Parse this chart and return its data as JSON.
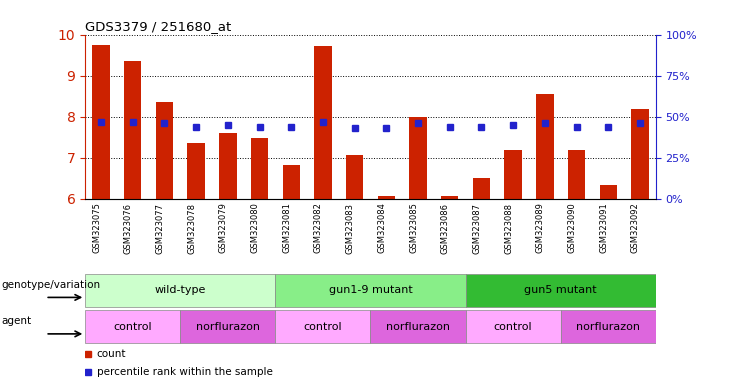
{
  "title": "GDS3379 / 251680_at",
  "samples": [
    "GSM323075",
    "GSM323076",
    "GSM323077",
    "GSM323078",
    "GSM323079",
    "GSM323080",
    "GSM323081",
    "GSM323082",
    "GSM323083",
    "GSM323084",
    "GSM323085",
    "GSM323086",
    "GSM323087",
    "GSM323088",
    "GSM323089",
    "GSM323090",
    "GSM323091",
    "GSM323092"
  ],
  "counts": [
    9.75,
    9.35,
    8.35,
    7.35,
    7.6,
    7.48,
    6.82,
    9.73,
    7.08,
    6.08,
    8.0,
    6.08,
    6.5,
    7.2,
    8.55,
    7.18,
    6.35,
    8.2
  ],
  "percentile_ranks": [
    47,
    47,
    46,
    44,
    45,
    44,
    44,
    47,
    43,
    43,
    46,
    44,
    44,
    45,
    46,
    44,
    44,
    46
  ],
  "ylim_left": [
    6,
    10
  ],
  "ylim_right": [
    0,
    100
  ],
  "yticks_left": [
    6,
    7,
    8,
    9,
    10
  ],
  "yticks_right": [
    0,
    25,
    50,
    75,
    100
  ],
  "bar_color": "#cc2200",
  "dot_color": "#2222cc",
  "bar_width": 0.55,
  "genotype_groups": [
    {
      "label": "wild-type",
      "start": 0,
      "end": 5,
      "color": "#ccffcc"
    },
    {
      "label": "gun1-9 mutant",
      "start": 6,
      "end": 11,
      "color": "#88ee88"
    },
    {
      "label": "gun5 mutant",
      "start": 12,
      "end": 17,
      "color": "#33bb33"
    }
  ],
  "agent_groups": [
    {
      "label": "control",
      "start": 0,
      "end": 2,
      "color": "#ffaaff"
    },
    {
      "label": "norflurazon",
      "start": 3,
      "end": 5,
      "color": "#dd66dd"
    },
    {
      "label": "control",
      "start": 6,
      "end": 8,
      "color": "#ffaaff"
    },
    {
      "label": "norflurazon",
      "start": 9,
      "end": 11,
      "color": "#dd66dd"
    },
    {
      "label": "control",
      "start": 12,
      "end": 14,
      "color": "#ffaaff"
    },
    {
      "label": "norflurazon",
      "start": 15,
      "end": 17,
      "color": "#dd66dd"
    }
  ],
  "genotype_label": "genotype/variation",
  "agent_label": "agent",
  "legend_count": "count",
  "legend_percentile": "percentile rank within the sample",
  "left_axis_color": "#cc2200",
  "right_axis_color": "#2222cc",
  "xtick_bg": "#dddddd"
}
